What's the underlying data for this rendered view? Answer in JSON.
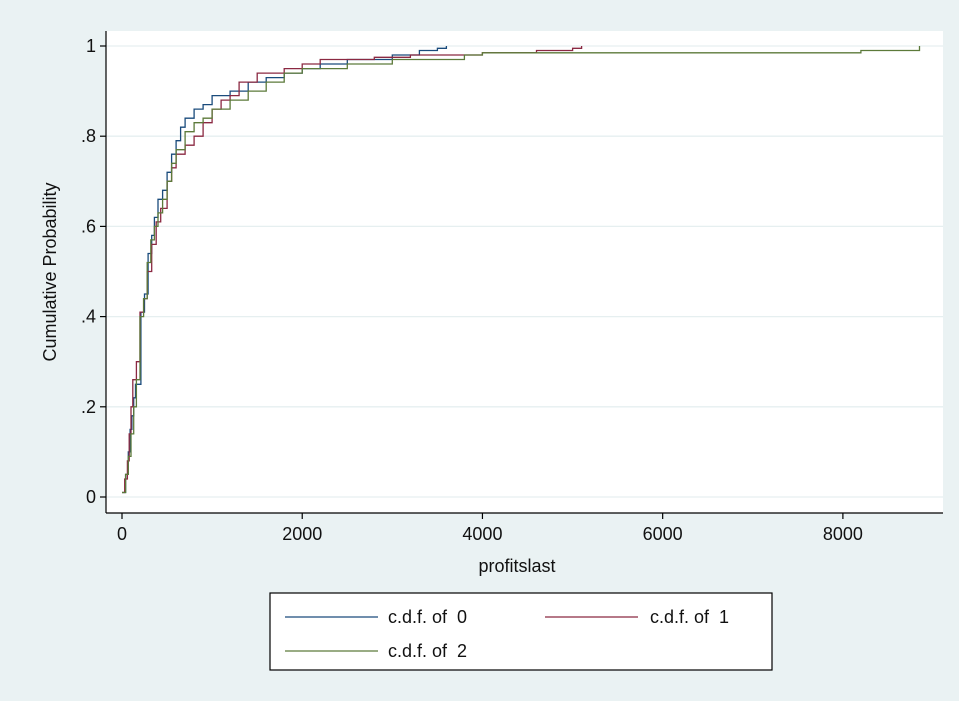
{
  "chart_data": {
    "type": "line",
    "xlabel": "profitslast",
    "ylabel": "Cumulative Probability",
    "xlim": [
      0,
      9000
    ],
    "ylim": [
      0,
      1
    ],
    "x_ticks": [
      0,
      2000,
      4000,
      6000,
      8000
    ],
    "x_tick_labels": [
      "0",
      "2000",
      "4000",
      "6000",
      "8000"
    ],
    "y_ticks": [
      0,
      0.2,
      0.4,
      0.6,
      0.8,
      1
    ],
    "y_tick_labels": [
      "0",
      ".2",
      ".4",
      ".6",
      ".8",
      "1"
    ],
    "grid": "horizontal",
    "legend_position": "bottom",
    "series": [
      {
        "name": "c.d.f. of  0",
        "color": "#1a4b7c",
        "points": [
          [
            0,
            0.01
          ],
          [
            40,
            0.05
          ],
          [
            70,
            0.1
          ],
          [
            90,
            0.15
          ],
          [
            110,
            0.18
          ],
          [
            130,
            0.22
          ],
          [
            150,
            0.25
          ],
          [
            200,
            0.25
          ],
          [
            210,
            0.41
          ],
          [
            250,
            0.45
          ],
          [
            290,
            0.54
          ],
          [
            330,
            0.58
          ],
          [
            360,
            0.62
          ],
          [
            400,
            0.66
          ],
          [
            450,
            0.68
          ],
          [
            500,
            0.72
          ],
          [
            550,
            0.76
          ],
          [
            600,
            0.79
          ],
          [
            650,
            0.82
          ],
          [
            700,
            0.84
          ],
          [
            800,
            0.86
          ],
          [
            900,
            0.87
          ],
          [
            1000,
            0.89
          ],
          [
            1200,
            0.9
          ],
          [
            1400,
            0.92
          ],
          [
            1600,
            0.93
          ],
          [
            1800,
            0.94
          ],
          [
            2000,
            0.95
          ],
          [
            2200,
            0.96
          ],
          [
            2500,
            0.97
          ],
          [
            3000,
            0.98
          ],
          [
            3300,
            0.99
          ],
          [
            3500,
            0.995
          ],
          [
            3600,
            1.0
          ]
        ]
      },
      {
        "name": "c.d.f. of  1",
        "color": "#8b2942",
        "points": [
          [
            0,
            0.01
          ],
          [
            30,
            0.04
          ],
          [
            60,
            0.08
          ],
          [
            80,
            0.14
          ],
          [
            100,
            0.2
          ],
          [
            120,
            0.26
          ],
          [
            160,
            0.3
          ],
          [
            200,
            0.41
          ],
          [
            240,
            0.44
          ],
          [
            280,
            0.5
          ],
          [
            330,
            0.56
          ],
          [
            380,
            0.61
          ],
          [
            430,
            0.64
          ],
          [
            500,
            0.7
          ],
          [
            550,
            0.73
          ],
          [
            600,
            0.76
          ],
          [
            700,
            0.78
          ],
          [
            800,
            0.8
          ],
          [
            900,
            0.83
          ],
          [
            1000,
            0.86
          ],
          [
            1100,
            0.88
          ],
          [
            1200,
            0.89
          ],
          [
            1300,
            0.92
          ],
          [
            1500,
            0.94
          ],
          [
            1800,
            0.95
          ],
          [
            2000,
            0.96
          ],
          [
            2200,
            0.97
          ],
          [
            2800,
            0.975
          ],
          [
            3200,
            0.98
          ],
          [
            4000,
            0.985
          ],
          [
            4600,
            0.99
          ],
          [
            5000,
            0.995
          ],
          [
            5100,
            1.0
          ]
        ]
      },
      {
        "name": "c.d.f. of  2",
        "color": "#5c7a3a",
        "points": [
          [
            0,
            0.01
          ],
          [
            40,
            0.05
          ],
          [
            70,
            0.09
          ],
          [
            100,
            0.14
          ],
          [
            130,
            0.2
          ],
          [
            160,
            0.26
          ],
          [
            200,
            0.4
          ],
          [
            240,
            0.44
          ],
          [
            280,
            0.52
          ],
          [
            320,
            0.57
          ],
          [
            360,
            0.6
          ],
          [
            400,
            0.63
          ],
          [
            450,
            0.66
          ],
          [
            500,
            0.7
          ],
          [
            550,
            0.74
          ],
          [
            600,
            0.77
          ],
          [
            700,
            0.81
          ],
          [
            800,
            0.83
          ],
          [
            900,
            0.84
          ],
          [
            1000,
            0.86
          ],
          [
            1200,
            0.88
          ],
          [
            1400,
            0.9
          ],
          [
            1600,
            0.92
          ],
          [
            1800,
            0.94
          ],
          [
            2000,
            0.95
          ],
          [
            2500,
            0.96
          ],
          [
            3000,
            0.97
          ],
          [
            3800,
            0.98
          ],
          [
            4000,
            0.985
          ],
          [
            6000,
            0.985
          ],
          [
            8200,
            0.99
          ],
          [
            8850,
            1.0
          ]
        ]
      }
    ]
  }
}
